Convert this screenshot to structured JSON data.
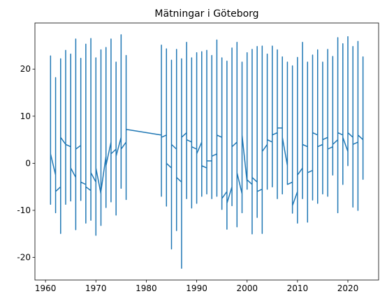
{
  "chart_data": {
    "type": "line",
    "title": "Mätningar i Göteborg",
    "color": "#1f77b4",
    "x": [
      1961,
      1961,
      1961,
      1961,
      1962,
      1962,
      1962,
      1962,
      1963,
      1963,
      1963,
      1963,
      1964,
      1964,
      1964,
      1964,
      1965,
      1965,
      1965,
      1965,
      1966,
      1966,
      1966,
      1966,
      1967,
      1967,
      1967,
      1967,
      1968,
      1968,
      1968,
      1968,
      1969,
      1969,
      1969,
      1969,
      1970,
      1970,
      1970,
      1970,
      1971,
      1971,
      1971,
      1971,
      1972,
      1972,
      1972,
      1972,
      1973,
      1973,
      1973,
      1973,
      1974,
      1974,
      1974,
      1974,
      1975,
      1975,
      1975,
      1975,
      1976,
      1976,
      1976,
      1976,
      1983,
      1983,
      1983,
      1983,
      1984,
      1984,
      1984,
      1984,
      1985,
      1985,
      1985,
      1985,
      1986,
      1986,
      1986,
      1986,
      1987,
      1987,
      1987,
      1987,
      1988,
      1988,
      1988,
      1988,
      1989,
      1989,
      1989,
      1989,
      1990,
      1990,
      1990,
      1990,
      1991,
      1991,
      1991,
      1991,
      1992,
      1992,
      1992,
      1992,
      1993,
      1993,
      1993,
      1993,
      1994,
      1994,
      1994,
      1994,
      1995,
      1995,
      1995,
      1995,
      1996,
      1996,
      1996,
      1996,
      1997,
      1997,
      1997,
      1997,
      1998,
      1998,
      1998,
      1998,
      1999,
      1999,
      1999,
      1999,
      2000,
      2000,
      2000,
      2000,
      2001,
      2001,
      2001,
      2001,
      2002,
      2002,
      2002,
      2002,
      2003,
      2003,
      2003,
      2003,
      2004,
      2004,
      2004,
      2004,
      2005,
      2005,
      2005,
      2005,
      2006,
      2006,
      2006,
      2006,
      2007,
      2007,
      2007,
      2007,
      2008,
      2008,
      2008,
      2008,
      2009,
      2009,
      2009,
      2009,
      2010,
      2010,
      2010,
      2010,
      2011,
      2011,
      2011,
      2011,
      2012,
      2012,
      2012,
      2012,
      2013,
      2013,
      2013,
      2013,
      2014,
      2014,
      2014,
      2014,
      2015,
      2015,
      2015,
      2015,
      2016,
      2016,
      2016,
      2016,
      2017,
      2017,
      2017,
      2017,
      2018,
      2018,
      2018,
      2018,
      2019,
      2019,
      2019,
      2019,
      2020,
      2020,
      2020,
      2020,
      2021,
      2021,
      2021,
      2021,
      2022,
      2022,
      2022,
      2022,
      2023,
      2023,
      2023,
      2023
    ],
    "values": [
      2.5,
      22.8,
      -8.7,
      2.0,
      -2.5,
      18.2,
      -10.5,
      -6.0,
      -5.0,
      22.2,
      -14.9,
      5.5,
      4.0,
      24.0,
      -8.7,
      4.0,
      3.5,
      23.2,
      -8.0,
      -1.0,
      -3.0,
      26.4,
      -14.1,
      3.0,
      3.8,
      22.3,
      -7.9,
      -4.0,
      -4.5,
      25.3,
      -12.7,
      -5.0,
      -5.8,
      26.5,
      -12.1,
      -2.0,
      -4.0,
      22.4,
      -15.3,
      -1.0,
      -6.5,
      24.1,
      -13.2,
      -6.0,
      1.5,
      24.6,
      -9.4,
      -0.5,
      4.5,
      26.4,
      -8.2,
      2.0,
      3.0,
      21.5,
      -11.0,
      1.5,
      5.5,
      27.3,
      -5.3,
      3.0,
      4.5,
      22.9,
      -7.7,
      7.2,
      6.0,
      25.1,
      -7.0,
      5.5,
      6.0,
      24.3,
      -9.1,
      0.0,
      -1.0,
      21.9,
      -18.2,
      4.0,
      3.0,
      24.2,
      -14.3,
      -3.0,
      -4.0,
      22.2,
      -22.3,
      5.5,
      6.5,
      25.7,
      -7.5,
      5.0,
      4.5,
      22.4,
      -9.5,
      3.5,
      3.0,
      23.5,
      -8.5,
      2.0,
      4.5,
      23.7,
      -7.0,
      -0.5,
      -1.0,
      24.0,
      -6.5,
      0.5,
      0.5,
      22.9,
      -7.5,
      1.5,
      2.0,
      26.2,
      -7.0,
      6.0,
      5.5,
      22.4,
      -9.8,
      -7.5,
      -6.0,
      21.7,
      -14.0,
      -8.5,
      -5.0,
      24.5,
      -9.0,
      3.5,
      4.5,
      25.7,
      -13.5,
      -2.0,
      -6.5,
      21.5,
      -10.5,
      6.0,
      -4.0,
      23.5,
      -5.5,
      -3.5,
      -4.5,
      24.2,
      -15.0,
      -3.0,
      -4.0,
      24.8,
      -11.5,
      -6.0,
      -5.5,
      24.9,
      -14.9,
      2.5,
      4.0,
      23.2,
      -5.5,
      5.0,
      4.5,
      24.9,
      -5.0,
      6.0,
      6.5,
      24.1,
      -7.5,
      7.5,
      7.5,
      22.6,
      -6.5,
      5.5,
      -0.5,
      21.5,
      -2.5,
      -4.5,
      -4.0,
      20.7,
      -10.6,
      -9.0,
      -6.0,
      22.5,
      -12.7,
      -2.5,
      -1.0,
      25.7,
      -7.5,
      4.0,
      3.5,
      21.5,
      -12.5,
      -2.0,
      -1.5,
      23.0,
      -7.8,
      6.5,
      6.0,
      24.1,
      -8.5,
      3.5,
      4.0,
      21.5,
      -6.5,
      5.0,
      5.5,
      24.2,
      -7.0,
      3.0,
      3.5,
      22.7,
      -2.5,
      4.0,
      5.0,
      26.7,
      -10.5,
      6.5,
      6.0,
      25.4,
      -4.5,
      5.5,
      2.5,
      26.9,
      -0.5,
      6.5,
      5.5,
      24.8,
      -9.3,
      4.0,
      4.5,
      25.9,
      -10.0,
      6.0,
      5.0,
      22.6,
      -3.4,
      4.5
    ],
    "xlim": [
      1957.9,
      2026.1
    ],
    "ylim": [
      -24.8,
      29.8
    ],
    "xticks": [
      1960,
      1970,
      1980,
      1990,
      2000,
      2010,
      2020
    ],
    "yticks": [
      -20,
      -10,
      0,
      10,
      20
    ]
  }
}
